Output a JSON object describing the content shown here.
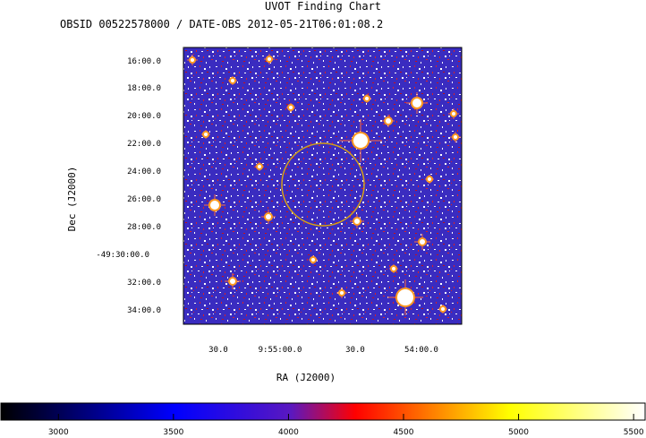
{
  "title": "UVOT Finding Chart",
  "subtitle": "OBSID 00522578000 / DATE-OBS 2012-05-21T06:01:08.2",
  "chart_data": {
    "type": "heatmap",
    "xlabel": "RA (J2000)",
    "ylabel": "Dec (J2000)",
    "x_ticks": [
      "30.0",
      "9:55:00.0",
      "30.0",
      "54:00.0"
    ],
    "y_ticks": [
      "16:00.0",
      "18:00.0",
      "20:00.0",
      "22:00.0",
      "24:00.0",
      "26:00.0",
      "28:00.0",
      "-49:30:00.0",
      "32:00.0",
      "34:00.0"
    ],
    "colorbar": {
      "range": [
        2750,
        5550
      ],
      "ticks": [
        3000,
        3500,
        4000,
        4500,
        5000,
        5500
      ],
      "colors": [
        "#000000",
        "#0000ff",
        "#d00000",
        "#ffff00",
        "#ffffff"
      ]
    },
    "circle_color": "#d4a017"
  }
}
